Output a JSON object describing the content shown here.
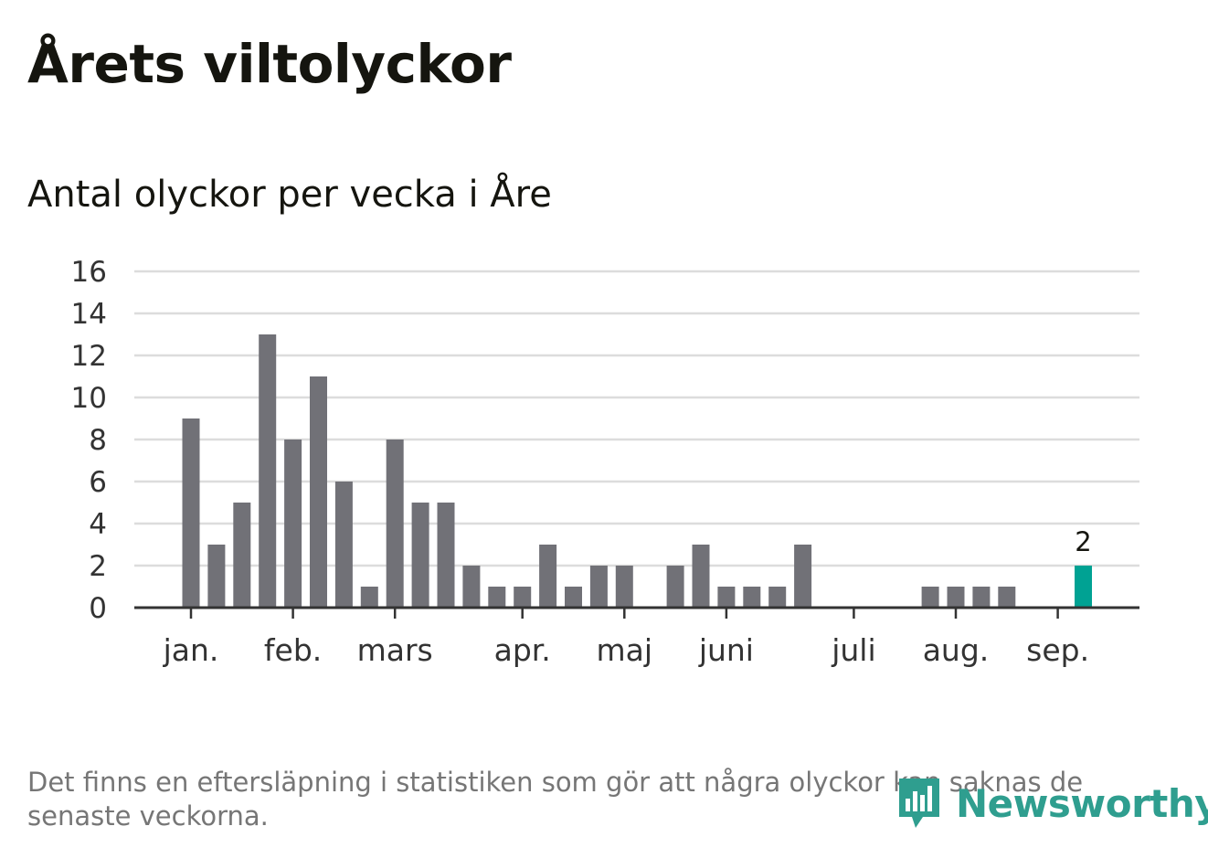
{
  "title": "Årets viltolyckor",
  "subtitle": "Antal olyckor per vecka i Åre",
  "footnote": "Det finns en eftersläpning i statistiken som gör att några olyckor kan saknas de senaste veckorna.",
  "logo": {
    "text": "Newsworthy",
    "icon": "newsworthy-bars-logo-icon",
    "color": "#2f9e8f"
  },
  "colors": {
    "bar": "#717177",
    "highlight": "#00a293",
    "grid": "#dcdcdc",
    "axis": "#333333"
  },
  "chart_data": {
    "type": "bar",
    "title": "Antal olyckor per vecka i Åre",
    "xlabel": "",
    "ylabel": "",
    "ylim": [
      0,
      16
    ],
    "yticks": [
      0,
      2,
      4,
      6,
      8,
      10,
      12,
      14,
      16
    ],
    "grid": true,
    "x_month_ticks": [
      {
        "label": "jan.",
        "week": 1
      },
      {
        "label": "feb.",
        "week": 5
      },
      {
        "label": "mars",
        "week": 9
      },
      {
        "label": "apr.",
        "week": 14
      },
      {
        "label": "maj",
        "week": 18
      },
      {
        "label": "juni",
        "week": 22
      },
      {
        "label": "juli",
        "week": 27
      },
      {
        "label": "aug.",
        "week": 31
      },
      {
        "label": "sep.",
        "week": 35
      }
    ],
    "weeks": [
      1,
      2,
      3,
      4,
      5,
      6,
      7,
      8,
      9,
      10,
      11,
      12,
      13,
      14,
      15,
      16,
      17,
      18,
      19,
      20,
      21,
      22,
      23,
      24,
      25,
      26,
      27,
      28,
      29,
      30,
      31,
      32,
      33,
      34,
      35,
      36
    ],
    "values": [
      9,
      3,
      5,
      13,
      8,
      11,
      6,
      1,
      8,
      5,
      5,
      2,
      1,
      1,
      3,
      1,
      2,
      2,
      0,
      2,
      3,
      1,
      1,
      1,
      3,
      0,
      0,
      0,
      0,
      1,
      1,
      1,
      1,
      0,
      0,
      2
    ],
    "highlight": {
      "week": 36,
      "value": 2,
      "label": "2"
    }
  }
}
